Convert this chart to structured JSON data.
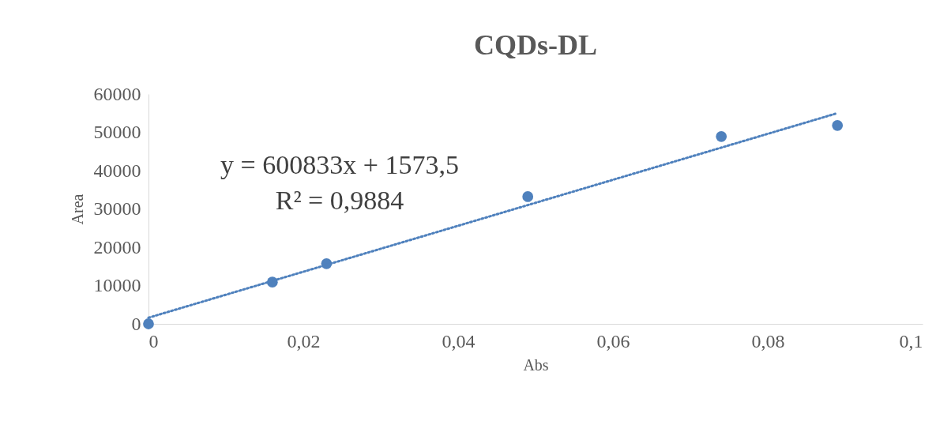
{
  "chart_data": {
    "type": "scatter",
    "title": "CQDs-DL",
    "xlabel": "Abs",
    "ylabel": "Area",
    "xlim": [
      0,
      0.1
    ],
    "xticks": [
      0,
      {
        "value": 0.02,
        "label": "0,02"
      },
      {
        "value": 0.04,
        "label": "0,04"
      },
      {
        "value": 0.06,
        "label": "0,06"
      },
      {
        "value": 0.08,
        "label": "0,08"
      },
      {
        "value": 0.1,
        "label": "0,1"
      }
    ],
    "ylim": [
      0,
      60000
    ],
    "yticks": [
      0,
      10000,
      20000,
      30000,
      40000,
      50000,
      60000
    ],
    "grid": false,
    "marker": "circle",
    "series": [
      {
        "color": "#4f81bd",
        "x": [
          0,
          0.016,
          0.023,
          0.049,
          0.074,
          0.089
        ],
        "values": [
          0,
          10900,
          15700,
          33200,
          48900,
          51800
        ]
      },
      {
        "type": "line",
        "color": "#4f81bd",
        "line_style": "dotted",
        "marker": "none",
        "x": [
          0,
          0.089
        ],
        "values": [
          1600,
          55000
        ]
      }
    ],
    "annotations": [
      "y = 600833x + 1573,5",
      "R² = 0,9884"
    ]
  }
}
